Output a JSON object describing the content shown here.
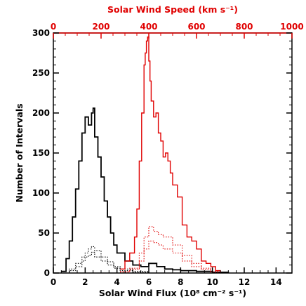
{
  "chart_data": {
    "type": "line",
    "xlabel": "Solar Wind Flux (10⁸ cm⁻² s⁻¹)",
    "ylabel": "Number of Intervals",
    "top_xlabel": "Solar Wind Speed (km s⁻¹)",
    "xlim": [
      0,
      15
    ],
    "ylim": [
      0,
      300
    ],
    "top_xlim": [
      0,
      1000
    ],
    "x_ticks": [
      0,
      2,
      4,
      6,
      8,
      10,
      12,
      14
    ],
    "x_tick_labels": [
      "0",
      "2",
      "4",
      "6",
      "8",
      "10",
      "12",
      "14"
    ],
    "y_ticks": [
      0,
      50,
      100,
      150,
      200,
      250,
      300
    ],
    "y_tick_labels": [
      "0",
      "50",
      "100",
      "150",
      "200",
      "250",
      "300"
    ],
    "top_x_ticks": [
      0,
      200,
      400,
      600,
      800,
      1000
    ],
    "top_x_tick_labels": [
      "0",
      "200",
      "400",
      "600",
      "800",
      "1000"
    ],
    "colors": {
      "flux": "#000000",
      "speed": "#e00000",
      "axes": "#000000",
      "top_axis": "#e00000"
    },
    "series": [
      {
        "style": "solid",
        "color": "#000000",
        "axis": "bottom",
        "x": [
          0.5,
          0.8,
          1.0,
          1.2,
          1.4,
          1.6,
          1.8,
          2.0,
          2.2,
          2.4,
          2.5,
          2.6,
          2.8,
          3.0,
          3.2,
          3.4,
          3.6,
          3.8,
          4.0,
          4.5,
          5.0,
          5.5,
          6.0,
          6.5,
          7.0,
          7.5,
          8.0,
          9.0,
          10.0,
          11.0
        ],
        "y": [
          2,
          18,
          40,
          70,
          105,
          140,
          175,
          195,
          185,
          200,
          206,
          170,
          145,
          120,
          90,
          70,
          50,
          35,
          25,
          15,
          10,
          8,
          12,
          8,
          5,
          4,
          3,
          2,
          1,
          0
        ]
      },
      {
        "style": "dotted",
        "color": "#000000",
        "axis": "bottom",
        "x": [
          0.6,
          1.0,
          1.4,
          1.8,
          2.0,
          2.2,
          2.4,
          2.6,
          3.0,
          3.4,
          3.8,
          4.2,
          5.0,
          6.0
        ],
        "y": [
          0,
          5,
          12,
          20,
          25,
          30,
          33,
          28,
          20,
          14,
          8,
          5,
          2,
          0
        ]
      },
      {
        "style": "dotted",
        "color": "#000000",
        "axis": "bottom",
        "x": [
          0.6,
          1.0,
          1.4,
          1.8,
          2.0,
          2.2,
          2.4,
          2.6,
          3.0,
          3.4,
          3.8,
          4.2,
          5.0,
          6.0
        ],
        "y": [
          0,
          3,
          8,
          15,
          20,
          22,
          26,
          20,
          15,
          10,
          6,
          3,
          1,
          0
        ]
      },
      {
        "style": "solid",
        "color": "#e00000",
        "axis": "top",
        "x": [
          280,
          300,
          320,
          340,
          350,
          360,
          370,
          380,
          385,
          390,
          395,
          400,
          405,
          410,
          420,
          430,
          440,
          450,
          460,
          470,
          480,
          490,
          500,
          520,
          540,
          560,
          580,
          600,
          620,
          640,
          660,
          680,
          700
        ],
        "y": [
          5,
          15,
          25,
          45,
          80,
          140,
          200,
          260,
          275,
          290,
          295,
          265,
          240,
          215,
          195,
          200,
          175,
          165,
          145,
          150,
          140,
          125,
          110,
          95,
          60,
          45,
          40,
          30,
          15,
          12,
          8,
          3,
          0
        ]
      },
      {
        "style": "dotted",
        "color": "#e00000",
        "axis": "top",
        "x": [
          280,
          320,
          360,
          380,
          400,
          420,
          440,
          460,
          500,
          540,
          580,
          620,
          660,
          700
        ],
        "y": [
          2,
          6,
          25,
          45,
          58,
          52,
          48,
          45,
          35,
          22,
          12,
          6,
          2,
          0
        ]
      },
      {
        "style": "dotted",
        "color": "#e00000",
        "axis": "top",
        "x": [
          280,
          320,
          360,
          380,
          400,
          420,
          440,
          460,
          500,
          540,
          580,
          620,
          660,
          700
        ],
        "y": [
          1,
          4,
          15,
          30,
          40,
          38,
          35,
          30,
          25,
          15,
          8,
          4,
          1,
          0
        ]
      }
    ]
  }
}
